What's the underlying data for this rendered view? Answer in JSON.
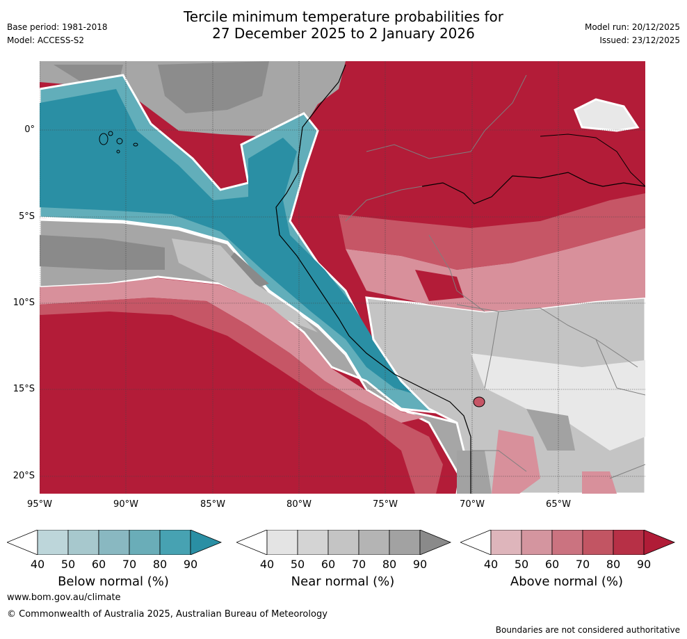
{
  "title": {
    "line1": "Tercile minimum temperature probabilities for",
    "line2": "27 December 2025 to 2 January 2026"
  },
  "meta": {
    "base_period": "Base period: 1981-2018",
    "model": "Model: ACCESS-S2",
    "model_run": "Model run: 20/12/2025",
    "issued": "Issued: 23/12/2025"
  },
  "map": {
    "lat_labels": [
      "0°",
      "5°S",
      "10°S",
      "15°S",
      "20°S"
    ],
    "lon_labels": [
      "95°W",
      "90°W",
      "85°W",
      "80°W",
      "75°W",
      "70°W",
      "65°W"
    ],
    "colors": {
      "above": "#b31c38",
      "above_mid": "#c65666",
      "above_light": "#d8909b",
      "below": "#2a8fa4",
      "below_mid": "#62aeba",
      "below_light": "#a9cdd3",
      "near": "#8a8a8a",
      "near_mid": "#a6a6a6",
      "near_light": "#d6d6d6",
      "neutral": "#e8e8e8",
      "contour": "#ffffff",
      "coast": "#000000",
      "border": "#7f7f7f"
    }
  },
  "colorbars": [
    {
      "label": "Below normal (%)",
      "ticks": [
        "40",
        "50",
        "60",
        "70",
        "80",
        "90"
      ],
      "colors": [
        "#ffffff",
        "#bdd6da",
        "#a7c8cd",
        "#89b8c1",
        "#6aadb8",
        "#47a2b2",
        "#2a8fa4"
      ]
    },
    {
      "label": "Near normal (%)",
      "ticks": [
        "40",
        "50",
        "60",
        "70",
        "80",
        "90"
      ],
      "colors": [
        "#ffffff",
        "#e4e4e4",
        "#d4d4d4",
        "#c4c4c4",
        "#b4b4b4",
        "#a2a2a2",
        "#8a8a8a"
      ]
    },
    {
      "label": "Above normal (%)",
      "ticks": [
        "40",
        "50",
        "60",
        "70",
        "80",
        "90"
      ],
      "colors": [
        "#ffffff",
        "#deb5bb",
        "#d4959f",
        "#cb7380",
        "#c25563",
        "#b73046",
        "#b01c37"
      ]
    }
  ],
  "footer": {
    "website": "www.bom.gov.au/climate",
    "copyright": "© Commonwealth of Australia 2025, Australian Bureau of Meteorology",
    "disclaimer": "Boundaries are not considered authoritative"
  }
}
